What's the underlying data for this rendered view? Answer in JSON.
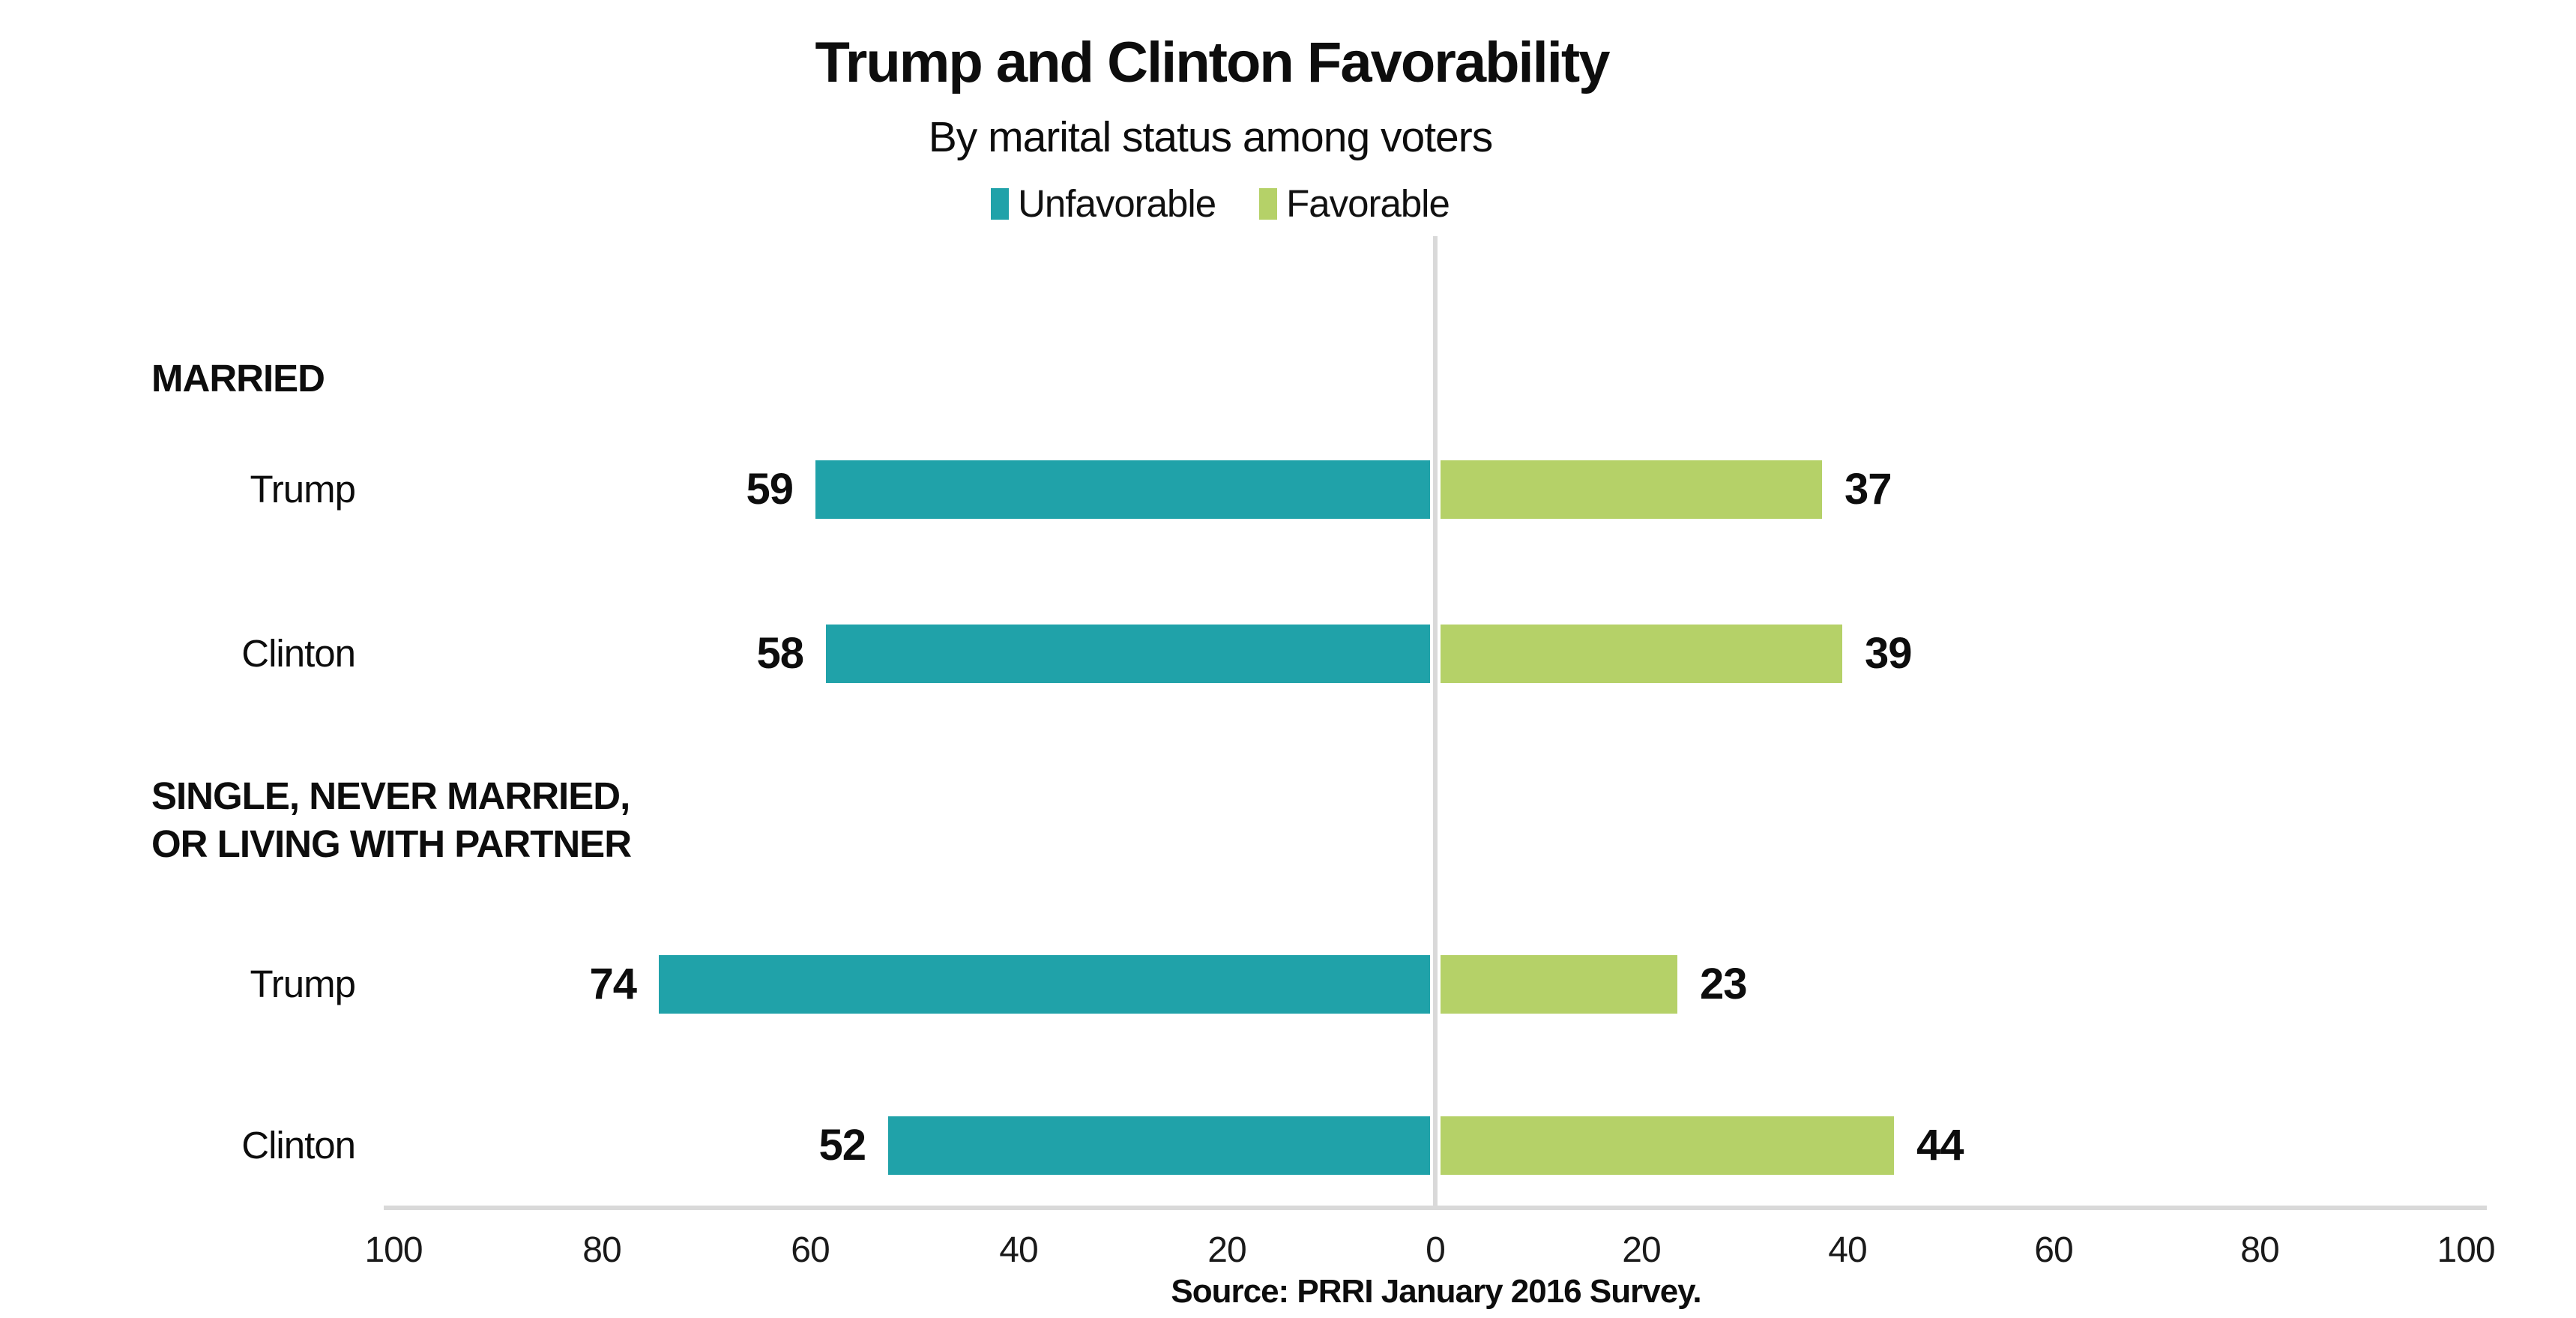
{
  "title": "Trump and Clinton Favorability",
  "subtitle": "By marital status among voters",
  "legend": [
    {
      "label": "Unfavorable",
      "color": "#20A2A9"
    },
    {
      "label": "Favorable",
      "color": "#B5D168"
    }
  ],
  "source": "Source: PRRI January 2016 Survey.",
  "colors": {
    "unfavorable": "#20A2A9",
    "favorable": "#B5D168",
    "gridline": "#D9D9D9",
    "text": "#111111"
  },
  "chart_data": {
    "type": "bar",
    "orientation": "horizontal-diverging",
    "title": "Trump and Clinton Favorability",
    "subtitle": "By marital status among voters",
    "legend_position": "top-center",
    "grid": "zero-line-only",
    "x_axis": {
      "range_left": 100,
      "range_right": 100,
      "zero_label": "0",
      "ticks_left": [
        100,
        80,
        60,
        40,
        20
      ],
      "ticks_right": [
        20,
        40,
        60,
        80,
        100
      ]
    },
    "series": [
      {
        "name": "Unfavorable",
        "side": "left",
        "color": "#20A2A9"
      },
      {
        "name": "Favorable",
        "side": "right",
        "color": "#B5D168"
      }
    ],
    "groups": [
      {
        "label": "MARRIED",
        "label_lines": [
          "MARRIED"
        ],
        "rows": [
          {
            "name": "Trump",
            "unfavorable": 59,
            "favorable": 37
          },
          {
            "name": "Clinton",
            "unfavorable": 58,
            "favorable": 39
          }
        ]
      },
      {
        "label": "SINGLE, NEVER MARRIED, OR LIVING WITH PARTNER",
        "label_lines": [
          "SINGLE, NEVER MARRIED,",
          "OR LIVING WITH PARTNER"
        ],
        "rows": [
          {
            "name": "Trump",
            "unfavorable": 74,
            "favorable": 23
          },
          {
            "name": "Clinton",
            "unfavorable": 52,
            "favorable": 44
          }
        ]
      }
    ]
  }
}
